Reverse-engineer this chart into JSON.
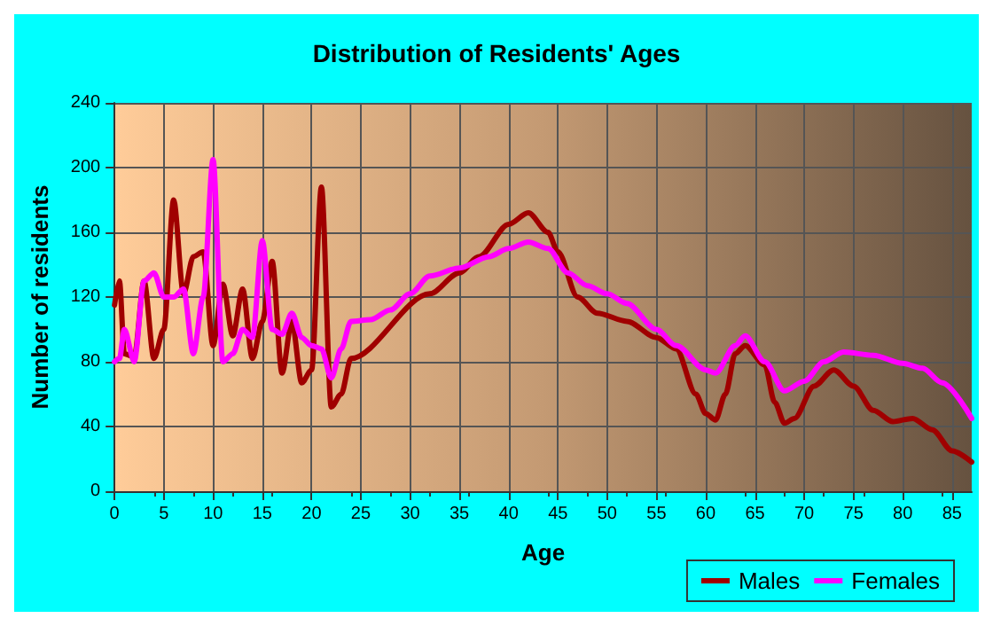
{
  "chart_data": {
    "type": "line",
    "title": "Distribution of Residents' Ages",
    "xlabel": "Age",
    "ylabel": "Number of residents",
    "xlim": [
      0,
      87
    ],
    "xticks": [
      0,
      5,
      10,
      15,
      20,
      25,
      30,
      35,
      40,
      45,
      50,
      55,
      60,
      65,
      70,
      75,
      80,
      85
    ],
    "ylim": [
      0,
      240
    ],
    "yticks": [
      0,
      40,
      80,
      120,
      160,
      200,
      240
    ],
    "grid": true,
    "legend": "bottom right",
    "marker": "none",
    "line_style": "solid",
    "series": [
      {
        "name": "Males",
        "color": "#a00000",
        "x": [
          0,
          0.5,
          1,
          2,
          3,
          4,
          5,
          6,
          7,
          8,
          9,
          10,
          11,
          12,
          13,
          14,
          15,
          16,
          17,
          18,
          19,
          20,
          21,
          22,
          23,
          24,
          32,
          35,
          37,
          40,
          42,
          44,
          45,
          47,
          49,
          52,
          55,
          57,
          59,
          60,
          61,
          62,
          63,
          64,
          66,
          67,
          68,
          69,
          71,
          73,
          75,
          77,
          79,
          81,
          83,
          85,
          87
        ],
        "values": [
          115,
          130,
          85,
          83,
          130,
          82,
          100,
          180,
          122,
          145,
          148,
          90,
          128,
          96,
          125,
          82,
          105,
          142,
          73,
          105,
          67,
          75,
          188,
          52,
          60,
          82,
          122,
          135,
          145,
          165,
          172,
          160,
          148,
          120,
          110,
          105,
          95,
          88,
          60,
          48,
          44,
          60,
          85,
          90,
          78,
          55,
          42,
          45,
          65,
          75,
          65,
          50,
          43,
          45,
          38,
          25,
          18
        ]
      },
      {
        "name": "Females",
        "color": "#ff00ff",
        "x": [
          0,
          0.5,
          1,
          2,
          3,
          4,
          5,
          6,
          7,
          8,
          9,
          10,
          11,
          12,
          13,
          14,
          15,
          16,
          17,
          18,
          19,
          20,
          21,
          22,
          23,
          24,
          26,
          28,
          30,
          32,
          35,
          38,
          40,
          42,
          44,
          46,
          48,
          50,
          52,
          55,
          57,
          60,
          61,
          63,
          64,
          66,
          68,
          70,
          72,
          74,
          77,
          80,
          82,
          84,
          87
        ],
        "values": [
          80,
          82,
          100,
          80,
          130,
          135,
          120,
          120,
          125,
          85,
          120,
          205,
          80,
          85,
          100,
          95,
          155,
          100,
          97,
          110,
          95,
          90,
          88,
          70,
          88,
          105,
          106,
          112,
          122,
          133,
          138,
          145,
          150,
          154,
          150,
          135,
          127,
          122,
          116,
          100,
          90,
          75,
          73,
          90,
          96,
          80,
          62,
          68,
          80,
          86,
          84,
          79,
          76,
          67,
          45
        ]
      }
    ]
  }
}
